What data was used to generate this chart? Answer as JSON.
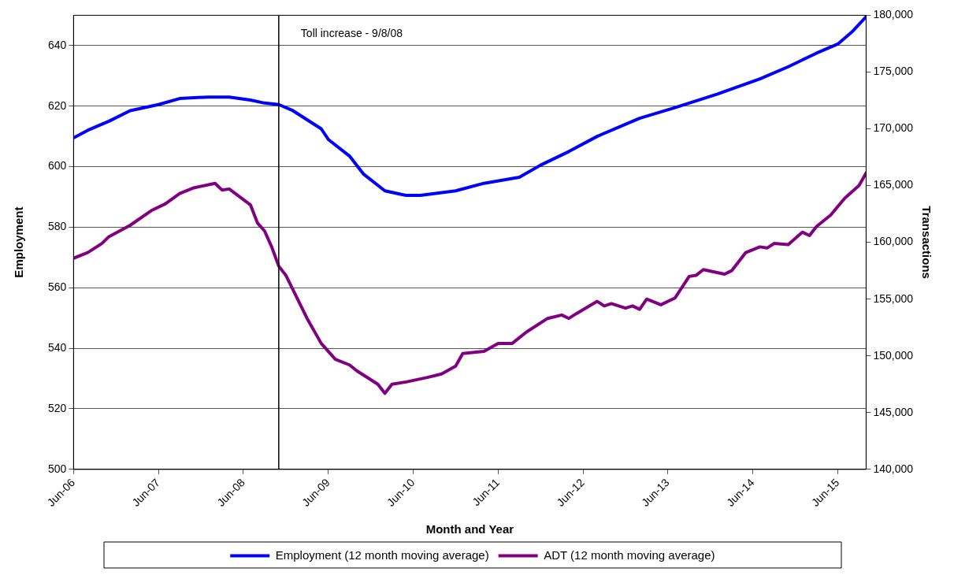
{
  "chart_data": {
    "type": "line",
    "xlabel": "Month and Year",
    "ylabel": "Employment",
    "y2label": "Transactions",
    "xlim": [
      "2006-06",
      "2015-10"
    ],
    "xticks": [
      {
        "value": "2006-06",
        "label": "Jun-06"
      },
      {
        "value": "2007-06",
        "label": "Jun-07"
      },
      {
        "value": "2008-06",
        "label": "Jun-08"
      },
      {
        "value": "2009-06",
        "label": "Jun-09"
      },
      {
        "value": "2010-06",
        "label": "Jun-10"
      },
      {
        "value": "2011-06",
        "label": "Jun-11"
      },
      {
        "value": "2012-06",
        "label": "Jun-12"
      },
      {
        "value": "2013-06",
        "label": "Jun-13"
      },
      {
        "value": "2014-06",
        "label": "Jun-14"
      },
      {
        "value": "2015-06",
        "label": "Jun-15"
      }
    ],
    "ylim": [
      500,
      650
    ],
    "yticks": [
      500,
      520,
      540,
      560,
      580,
      600,
      620,
      640
    ],
    "y2lim": [
      140000,
      180000
    ],
    "y2ticks": [
      {
        "value": 140000,
        "label": "140,000"
      },
      {
        "value": 145000,
        "label": "145,000"
      },
      {
        "value": 150000,
        "label": "150,000"
      },
      {
        "value": 155000,
        "label": "155,000"
      },
      {
        "value": 160000,
        "label": "160,000"
      },
      {
        "value": 165000,
        "label": "165,000"
      },
      {
        "value": 170000,
        "label": "170,000"
      },
      {
        "value": 175000,
        "label": "175,000"
      },
      {
        "value": 180000,
        "label": "180,000"
      }
    ],
    "grid": "y",
    "legend": "bottom",
    "marker": "none",
    "line_style": "solid",
    "ref_lines": [
      {
        "axis": "x",
        "value": "2008-11",
        "label": "Toll increase - 9/8/08",
        "color": "#000000"
      }
    ],
    "series": [
      {
        "name": "Employment (12 month moving average)",
        "color": "#0000ff",
        "x": [
          "2006-06",
          "2006-08",
          "2006-11",
          "2007-02",
          "2007-06",
          "2007-09",
          "2008-01",
          "2008-04",
          "2008-07",
          "2008-09",
          "2008-11",
          "2009-01",
          "2009-05",
          "2009-06",
          "2009-09",
          "2009-11",
          "2010-02",
          "2010-05",
          "2010-07",
          "2010-12",
          "2011-04",
          "2011-09",
          "2011-12",
          "2012-04",
          "2012-08",
          "2013-02",
          "2013-07",
          "2014-01",
          "2014-07",
          "2014-11",
          "2015-03",
          "2015-06",
          "2015-08",
          "2015-10"
        ],
        "values": [
          609.5,
          612,
          615,
          618.5,
          620.5,
          622.5,
          623,
          623,
          622,
          621,
          620.5,
          618.5,
          612.5,
          609,
          603.5,
          597.5,
          592,
          590.5,
          590.5,
          592,
          594.5,
          596.5,
          600.5,
          605,
          610,
          616,
          619.5,
          624,
          629,
          633,
          637.5,
          640.5,
          644.5,
          649.5
        ]
      },
      {
        "name": "ADT (12 month moving average)",
        "color": "#800080",
        "axis": "y2",
        "x": [
          "2006-06",
          "2006-08",
          "2006-10",
          "2006-11",
          "2007-02",
          "2007-05",
          "2007-07",
          "2007-09",
          "2007-11",
          "2008-02",
          "2008-03",
          "2008-04",
          "2008-07",
          "2008-08",
          "2008-09",
          "2008-10",
          "2008-11",
          "2008-12",
          "2009-03",
          "2009-05",
          "2009-07",
          "2009-09",
          "2009-10",
          "2010-01",
          "2010-02",
          "2010-03",
          "2010-05",
          "2010-08",
          "2010-10",
          "2010-12",
          "2011-01",
          "2011-04",
          "2011-06",
          "2011-08",
          "2011-10",
          "2012-01",
          "2012-03",
          "2012-04",
          "2012-05",
          "2012-08",
          "2012-09",
          "2012-10",
          "2012-12",
          "2013-01",
          "2013-02",
          "2013-03",
          "2013-05",
          "2013-07",
          "2013-09",
          "2013-10",
          "2013-11",
          "2014-02",
          "2014-03",
          "2014-05",
          "2014-07",
          "2014-08",
          "2014-09",
          "2014-11",
          "2015-01",
          "2015-02",
          "2015-03",
          "2015-05",
          "2015-07",
          "2015-09",
          "2015-10"
        ],
        "values": [
          158600,
          159100,
          159900,
          160500,
          161500,
          162800,
          163400,
          164300,
          164800,
          165200,
          164600,
          164700,
          163300,
          161700,
          161000,
          159600,
          157900,
          157100,
          153300,
          151100,
          149700,
          149200,
          148700,
          147500,
          146700,
          147500,
          147700,
          148100,
          148400,
          149100,
          150200,
          150400,
          151100,
          151100,
          152100,
          153300,
          153600,
          153300,
          153700,
          154800,
          154400,
          154600,
          154200,
          154400,
          154100,
          155000,
          154500,
          155100,
          157000,
          157100,
          157600,
          157200,
          157500,
          159100,
          159600,
          159500,
          159900,
          159800,
          160900,
          160600,
          161400,
          162400,
          163900,
          165000,
          166100
        ]
      }
    ]
  }
}
